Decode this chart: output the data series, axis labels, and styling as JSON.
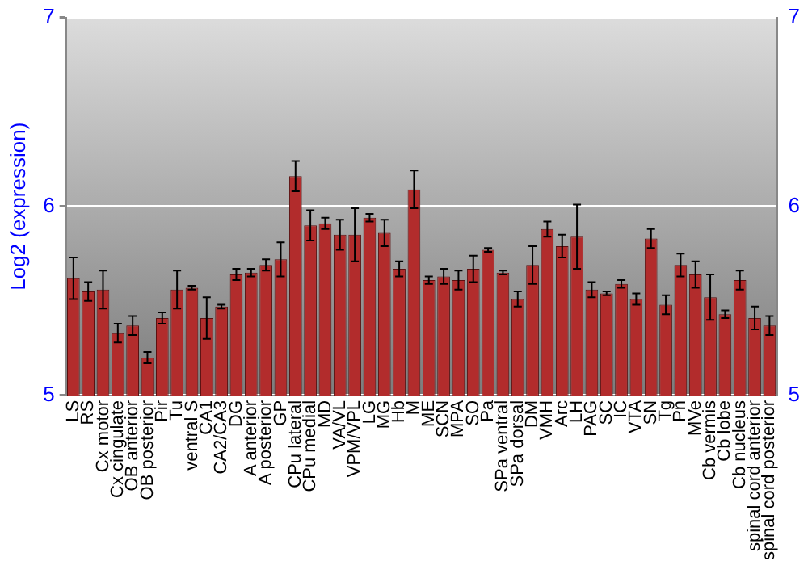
{
  "chart_data": {
    "type": "bar",
    "ylabel": "Log2 (expression)",
    "categories": [
      "LS",
      "RS",
      "Cx motor",
      "Cx cingulate",
      "OB anterior",
      "OB posterior",
      "Pir",
      "Tu",
      "ventral S",
      "CA1",
      "CA2/CA3",
      "DG",
      "A anterior",
      "A posterior",
      "GP",
      "CPu lateral",
      "CPu medial",
      "MD",
      "VA/VL",
      "VPM/VPL",
      "LG",
      "MG",
      "Hb",
      "M",
      "ME",
      "SCN",
      "MPA",
      "SO",
      "Pa",
      "SPa ventral",
      "SPa dorsal",
      "DM",
      "VMH",
      "Arc",
      "LH",
      "PAG",
      "SC",
      "IC",
      "VTA",
      "SN",
      "Tg",
      "Pn",
      "MVe",
      "Cb vermis",
      "Cb lobe",
      "Cb nucleus",
      "spinal cord anterior",
      "spinal cord posterior"
    ],
    "values": [
      5.62,
      5.55,
      5.56,
      5.33,
      5.37,
      5.2,
      5.41,
      5.56,
      5.57,
      5.41,
      5.47,
      5.64,
      5.65,
      5.69,
      5.72,
      6.16,
      5.9,
      5.91,
      5.85,
      5.85,
      5.94,
      5.86,
      5.67,
      6.09,
      5.61,
      5.63,
      5.61,
      5.67,
      5.77,
      5.65,
      5.51,
      5.69,
      5.88,
      5.79,
      5.84,
      5.56,
      5.54,
      5.59,
      5.51,
      5.83,
      5.48,
      5.69,
      5.64,
      5.52,
      5.43,
      5.61,
      5.41,
      5.37
    ],
    "errors": [
      0.11,
      0.05,
      0.1,
      0.05,
      0.05,
      0.03,
      0.03,
      0.1,
      0.01,
      0.11,
      0.01,
      0.03,
      0.02,
      0.03,
      0.09,
      0.08,
      0.08,
      0.03,
      0.08,
      0.14,
      0.02,
      0.07,
      0.04,
      0.1,
      0.02,
      0.04,
      0.05,
      0.07,
      0.01,
      0.01,
      0.04,
      0.1,
      0.04,
      0.06,
      0.17,
      0.04,
      0.01,
      0.02,
      0.03,
      0.05,
      0.05,
      0.06,
      0.07,
      0.12,
      0.02,
      0.05,
      0.06,
      0.05
    ],
    "color": "#b22c2c",
    "ylim": [
      5,
      7
    ],
    "yticks": [
      5,
      6,
      7
    ],
    "y2lim": [
      5,
      7
    ],
    "y2ticks": [
      5,
      6,
      7
    ],
    "grid": "y",
    "legend": false
  }
}
